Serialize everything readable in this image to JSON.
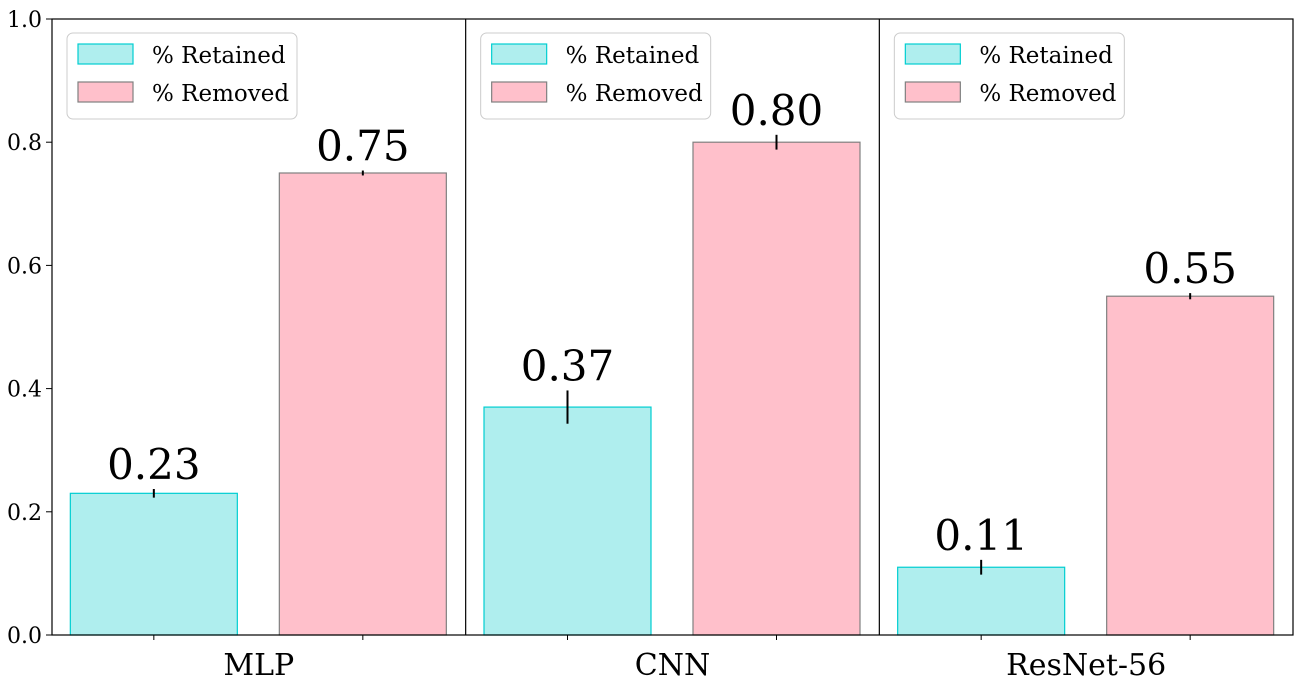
{
  "chart_data": {
    "type": "bar",
    "categories": [
      "MLP",
      "CNN",
      "ResNet-56"
    ],
    "series": [
      {
        "name": "% Retained",
        "values": [
          0.23,
          0.37,
          0.11
        ],
        "errors": [
          0.007,
          0.027,
          0.012
        ],
        "labels": [
          "0.23",
          "0.37",
          "0.11"
        ],
        "fill": "#afeeee",
        "edge": "#00ced1"
      },
      {
        "name": "% Removed",
        "values": [
          0.75,
          0.8,
          0.55
        ],
        "errors": [
          0.004,
          0.012,
          0.005
        ],
        "labels": [
          "0.75",
          "0.80",
          "0.55"
        ],
        "fill": "#ffc0cb",
        "edge": "#808080"
      }
    ],
    "ylim": [
      0,
      1.0
    ],
    "yticks": [
      "0.0",
      "0.2",
      "0.4",
      "0.6",
      "0.8",
      "1.0"
    ],
    "legend_position": "top-left of each panel",
    "grid": false
  }
}
